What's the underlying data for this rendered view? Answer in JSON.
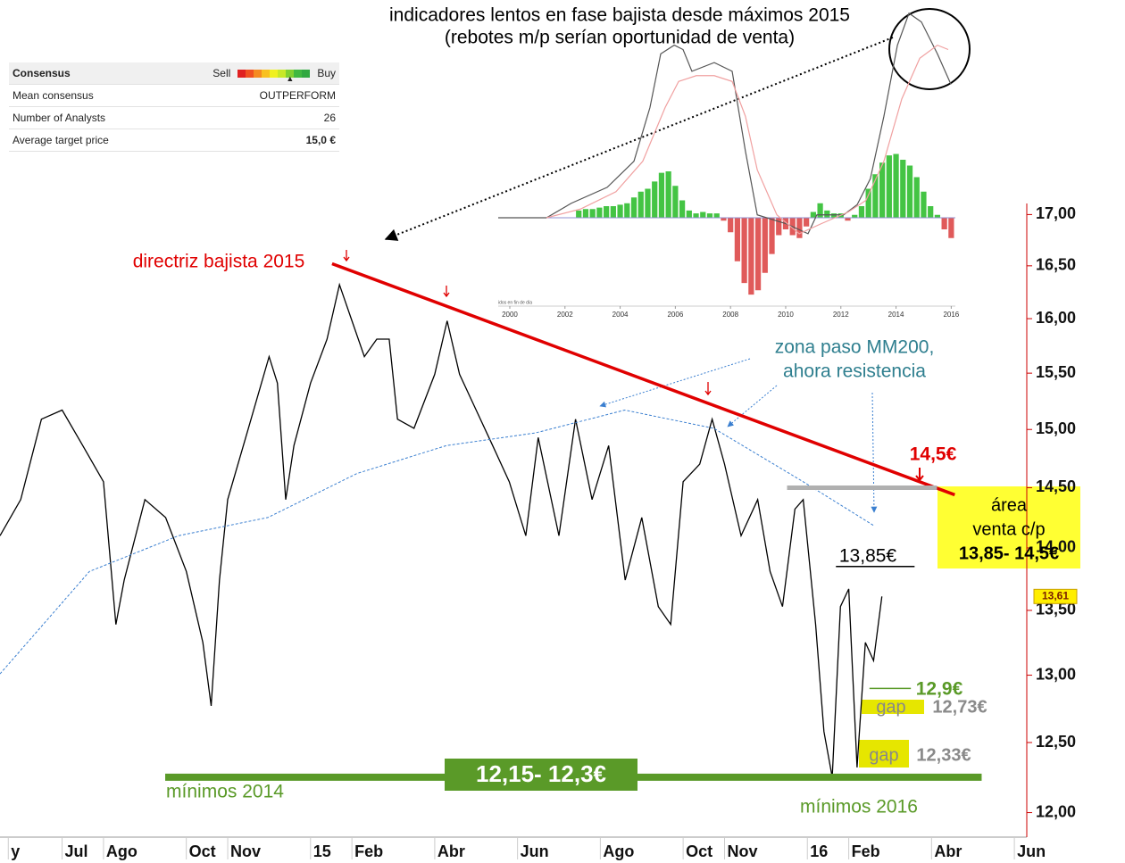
{
  "consensus": {
    "title": "Consensus",
    "sell": "Sell",
    "buy": "Buy",
    "rows": [
      [
        "Mean consensus",
        "OUTPERFORM"
      ],
      [
        "Number of Analysts",
        "26"
      ],
      [
        "Average target price",
        "15,0 €"
      ]
    ]
  },
  "chart_data": [
    {
      "type": "line",
      "log_scale": true,
      "ylim": [
        11.83,
        17.11
      ],
      "xlim": [
        -7.5,
        17.3
      ],
      "yticks": [
        {
          "value": 12,
          "label": "12,00"
        },
        {
          "value": 12.5,
          "label": "12,50"
        },
        {
          "value": 13,
          "label": "13,00"
        },
        {
          "value": 13.5,
          "label": "13,50"
        },
        {
          "value": 14,
          "label": "14,00"
        },
        {
          "value": 14.5,
          "label": "14,50"
        },
        {
          "value": 15,
          "label": "15,00"
        },
        {
          "value": 15.5,
          "label": "15,50"
        },
        {
          "value": 16,
          "label": "16,00"
        },
        {
          "value": 16.5,
          "label": "16,50"
        },
        {
          "value": 17,
          "label": "17,00"
        }
      ],
      "xticks": [
        {
          "value": -7.3,
          "label": "y"
        },
        {
          "value": -6,
          "label": "Jul"
        },
        {
          "value": -5,
          "label": "Ago"
        },
        {
          "value": -3,
          "label": "Oct"
        },
        {
          "value": -2,
          "label": "Nov"
        },
        {
          "value": 0,
          "label": "15"
        },
        {
          "value": 1,
          "label": "Feb"
        },
        {
          "value": 3,
          "label": "Abr"
        },
        {
          "value": 5,
          "label": "Jun"
        },
        {
          "value": 7,
          "label": "Ago"
        },
        {
          "value": 9,
          "label": "Oct"
        },
        {
          "value": 10,
          "label": "Nov"
        },
        {
          "value": 12,
          "label": "16"
        },
        {
          "value": 13,
          "label": "Feb"
        },
        {
          "value": 15,
          "label": "Abr"
        },
        {
          "value": 17,
          "label": "Jun"
        }
      ],
      "series": [
        {
          "color": "#000000",
          "x": [
            -7.5,
            -7.0,
            -6.5,
            -6.0,
            -5.5,
            -5.0,
            -4.7,
            -4.5,
            -4.0,
            -3.5,
            -3.0,
            -2.6,
            -2.4,
            -2.2,
            -2.0,
            -1.5,
            -1.0,
            -0.8,
            -0.6,
            -0.4,
            0.0,
            0.4,
            0.7,
            1.0,
            1.3,
            1.6,
            1.9,
            2.1,
            2.5,
            3.0,
            3.3,
            3.6,
            4.0,
            4.4,
            4.8,
            5.2,
            5.5,
            6.0,
            6.4,
            6.8,
            7.2,
            7.6,
            8.0,
            8.4,
            8.7,
            9.0,
            9.4,
            9.7,
            10.0,
            10.4,
            10.8,
            11.1,
            11.4,
            11.7,
            11.9,
            12.2,
            12.4,
            12.6,
            12.8,
            13.0,
            13.2,
            13.4,
            13.6,
            13.8
          ],
          "values": [
            14.1,
            14.4,
            15.09,
            15.17,
            14.86,
            14.55,
            13.39,
            13.74,
            14.4,
            14.25,
            13.81,
            13.25,
            12.77,
            13.74,
            14.4,
            15.01,
            15.65,
            15.41,
            14.4,
            14.86,
            15.41,
            15.81,
            16.32,
            15.98,
            15.65,
            15.81,
            15.81,
            15.09,
            15.01,
            15.49,
            15.98,
            15.49,
            15.17,
            14.86,
            14.55,
            14.1,
            14.93,
            14.1,
            15.09,
            14.4,
            14.86,
            13.74,
            14.25,
            13.53,
            13.39,
            14.55,
            14.7,
            15.09,
            14.7,
            14.1,
            14.4,
            13.81,
            13.53,
            14.32,
            14.4,
            13.39,
            12.58,
            12.25,
            13.53,
            13.67,
            12.32,
            13.25,
            13.11,
            13.61
          ]
        },
        {
          "color": "#3a7fd0",
          "dashed": true,
          "x": [
            -7.5,
            -5.34,
            -3.19,
            -1.03,
            1.12,
            3.28,
            5.43,
            7.59,
            9.74,
            11.9,
            13.62
          ],
          "values": [
            13.01,
            13.81,
            14.1,
            14.25,
            14.62,
            14.86,
            14.97,
            15.17,
            15.01,
            14.55,
            14.18
          ]
        }
      ],
      "trendline": {
        "label": "directriz bajista 2015",
        "color": "#e00000",
        "x": [
          0.52,
          15.56
        ],
        "values": [
          16.52,
          14.44
        ]
      },
      "levels": [
        {
          "value": 14.5,
          "label": "14,5€",
          "x": [
            11.51,
            15.13
          ],
          "color": "#b0b0b0"
        },
        {
          "value": 13.85,
          "label": "13,85€",
          "x": [
            12.69,
            14.59
          ],
          "color": "#000000"
        },
        {
          "value": 12.9,
          "label": "12,9€",
          "x": [
            13.5,
            14.5
          ],
          "color": "#5a9a28"
        },
        {
          "value": 12.25,
          "label": "12,15- 12,3€",
          "x": [
            -3.51,
            16.21
          ],
          "color": "#5a9a28"
        }
      ],
      "gaps": [
        {
          "tag": "gap",
          "value": 12.73,
          "label": "12,73€"
        },
        {
          "tag": "gap",
          "value": 12.33,
          "label": "12,33€"
        }
      ],
      "last_price": {
        "value": 13.61,
        "label": "13,61"
      },
      "annotations": [
        "indicadores lentos en fase bajista desde máximos 2015",
        "(rebotes m/p serían oportunidad de venta)",
        "zona paso MM200,",
        "ahora resistencia",
        "área",
        "venta c/p",
        "13,85- 14,5€",
        "mínimos 2014",
        "mínimos 2016"
      ]
    },
    {
      "type": "bar",
      "xlim": [
        1999.58,
        2016.15
      ],
      "ylim": [
        -0.56,
        1.44
      ],
      "note": "idos en fin de día",
      "xticks": [
        2000,
        2002,
        2004,
        2006,
        2008,
        2010,
        2012,
        2014,
        2016
      ],
      "colors": {
        "positive": "#44c444",
        "negative": "#e05a5a"
      },
      "x": [
        2002.5,
        2002.75,
        2003,
        2003.25,
        2003.5,
        2003.75,
        2004,
        2004.25,
        2004.5,
        2004.75,
        2005,
        2005.25,
        2005.5,
        2005.75,
        2006,
        2006.25,
        2006.5,
        2006.75,
        2007,
        2007.25,
        2007.5,
        2007.75,
        2008,
        2008.25,
        2008.5,
        2008.75,
        2009,
        2009.25,
        2009.5,
        2009.75,
        2010,
        2010.25,
        2010.5,
        2010.75,
        2011,
        2011.25,
        2011.5,
        2011.75,
        2012,
        2012.25,
        2012.5,
        2012.75,
        2013,
        2013.25,
        2013.5,
        2013.75,
        2014,
        2014.25,
        2014.5,
        2014.75,
        2015,
        2015.25,
        2015.5,
        2015.75,
        2016
      ],
      "values": [
        0.05,
        0.06,
        0.06,
        0.07,
        0.08,
        0.08,
        0.09,
        0.1,
        0.14,
        0.18,
        0.2,
        0.25,
        0.31,
        0.32,
        0.22,
        0.12,
        0.05,
        0.03,
        0.04,
        0.03,
        0.03,
        -0.02,
        -0.1,
        -0.3,
        -0.45,
        -0.53,
        -0.5,
        -0.38,
        -0.25,
        -0.12,
        -0.08,
        -0.12,
        -0.14,
        -0.06,
        0.04,
        0.1,
        0.05,
        0.03,
        0.03,
        -0.02,
        0.02,
        0.08,
        0.2,
        0.3,
        0.38,
        0.43,
        0.44,
        0.4,
        0.36,
        0.28,
        0.18,
        0.08,
        0.02,
        -0.08,
        -0.14
      ],
      "series": [
        {
          "color": "#555555",
          "x": [
            1999.58,
            2001.33,
            2002.23,
            2003.53,
            2004.5,
            2005.08,
            2005.47,
            2005.96,
            2006.28,
            2006.6,
            2007.41,
            2008.06,
            2008.54,
            2008.97,
            2010.0,
            2010.81,
            2011.13,
            2012.1,
            2012.59,
            2013.07,
            2013.56,
            2014.05,
            2014.47,
            2014.92,
            2015.5,
            2015.99
          ],
          "values": [
            0,
            0,
            0.1,
            0.21,
            0.39,
            0.76,
            1.13,
            1.19,
            1.16,
            1.01,
            1.07,
            1.01,
            0.46,
            0.02,
            -0.04,
            -0.11,
            0.02,
            0.02,
            0.09,
            0.27,
            0.7,
            1.19,
            1.41,
            1.35,
            1.13,
            0.92
          ]
        },
        {
          "color": "#f0a0a0",
          "x": [
            2001.33,
            2002.56,
            2003.85,
            2004.82,
            2005.63,
            2006.12,
            2006.76,
            2007.41,
            2008.06,
            2008.54,
            2008.97,
            2009.68,
            2010.49,
            2011.3,
            2012.27,
            2012.91,
            2013.56,
            2014.21,
            2014.86,
            2015.5,
            2015.89
          ],
          "values": [
            0,
            0.06,
            0.18,
            0.39,
            0.76,
            0.94,
            0.98,
            0.98,
            0.94,
            0.7,
            0.33,
            0.02,
            -0.11,
            -0.04,
            0.04,
            0.12,
            0.39,
            0.82,
            1.1,
            1.19,
            1.16
          ]
        }
      ]
    }
  ]
}
